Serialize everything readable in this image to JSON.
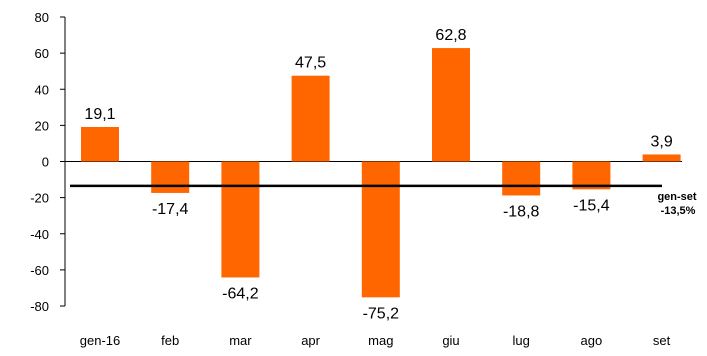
{
  "chart_data": {
    "type": "bar",
    "categories": [
      "gen-16",
      "feb",
      "mar",
      "apr",
      "mag",
      "giu",
      "lug",
      "ago",
      "set"
    ],
    "values": [
      19.1,
      -17.4,
      -64.2,
      47.5,
      -75.2,
      62.8,
      -18.8,
      -15.4,
      3.9
    ],
    "data_labels": [
      "19,1",
      "-17,4",
      "-64,2",
      "47,5",
      "-75,2",
      "62,8",
      "-18,8",
      "-15,4",
      "3,9"
    ],
    "ylim": [
      -80,
      80
    ],
    "yticks": [
      80,
      60,
      40,
      20,
      0,
      -20,
      -40,
      -60,
      -80
    ],
    "ytick_labels": [
      "80",
      "60",
      "40",
      "20",
      "0",
      "-20",
      "-40",
      "-60",
      "-80"
    ],
    "reference_line": {
      "value": -13.5
    },
    "annotation": {
      "line1": "gen-set",
      "line2": "-13,5%"
    },
    "grid": false,
    "legend": "none",
    "colors": {
      "bar": "#ff6600",
      "reference_line": "#000000",
      "axis": "#000000"
    }
  }
}
